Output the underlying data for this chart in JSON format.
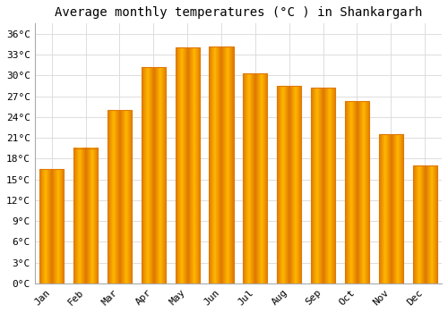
{
  "title": "Average monthly temperatures (°C ) in Shankargarh",
  "months": [
    "Jan",
    "Feb",
    "Mar",
    "Apr",
    "May",
    "Jun",
    "Jul",
    "Aug",
    "Sep",
    "Oct",
    "Nov",
    "Dec"
  ],
  "values": [
    16.5,
    19.5,
    25.0,
    31.2,
    34.0,
    34.2,
    30.3,
    28.5,
    28.2,
    26.3,
    21.5,
    17.0
  ],
  "bar_color_center": "#FFB700",
  "bar_color_edge": "#E07800",
  "ytick_labels": [
    "0°C",
    "3°C",
    "6°C",
    "9°C",
    "12°C",
    "15°C",
    "18°C",
    "21°C",
    "24°C",
    "27°C",
    "30°C",
    "33°C",
    "36°C"
  ],
  "ytick_values": [
    0,
    3,
    6,
    9,
    12,
    15,
    18,
    21,
    24,
    27,
    30,
    33,
    36
  ],
  "ylim": [
    0,
    37.5
  ],
  "background_color": "#FFFFFF",
  "grid_color": "#DDDDDD",
  "title_fontsize": 10,
  "tick_fontsize": 8,
  "font_family": "monospace"
}
